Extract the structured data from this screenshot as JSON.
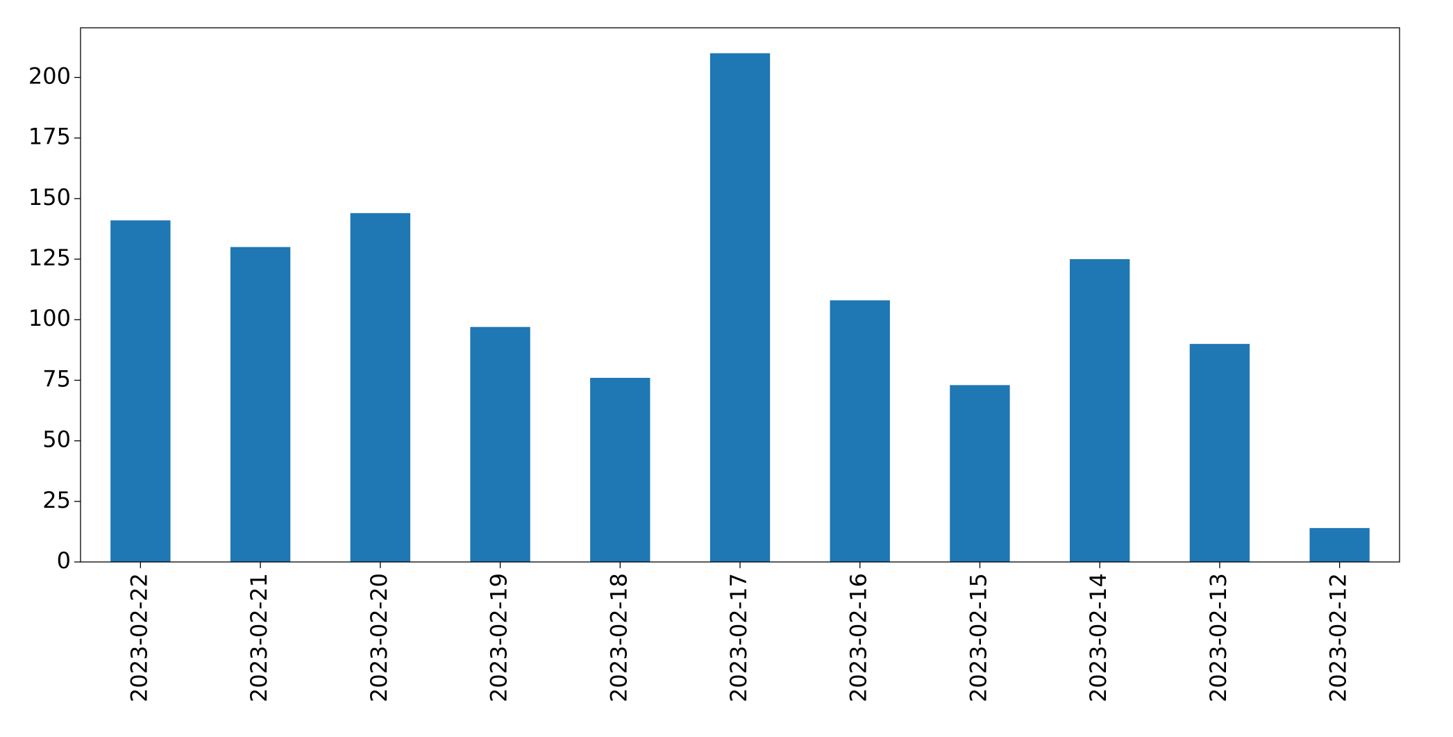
{
  "chart_data": {
    "type": "bar",
    "categories": [
      "2023-02-22",
      "2023-02-21",
      "2023-02-20",
      "2023-02-19",
      "2023-02-18",
      "2023-02-17",
      "2023-02-16",
      "2023-02-15",
      "2023-02-14",
      "2023-02-13",
      "2023-02-12"
    ],
    "values": [
      141,
      130,
      144,
      97,
      76,
      210,
      108,
      73,
      125,
      90,
      14
    ],
    "color": "#1f77b4",
    "ylim": [
      0,
      220.5
    ],
    "yticks": [
      0,
      25,
      50,
      75,
      100,
      125,
      150,
      175,
      200
    ],
    "grid": false
  }
}
